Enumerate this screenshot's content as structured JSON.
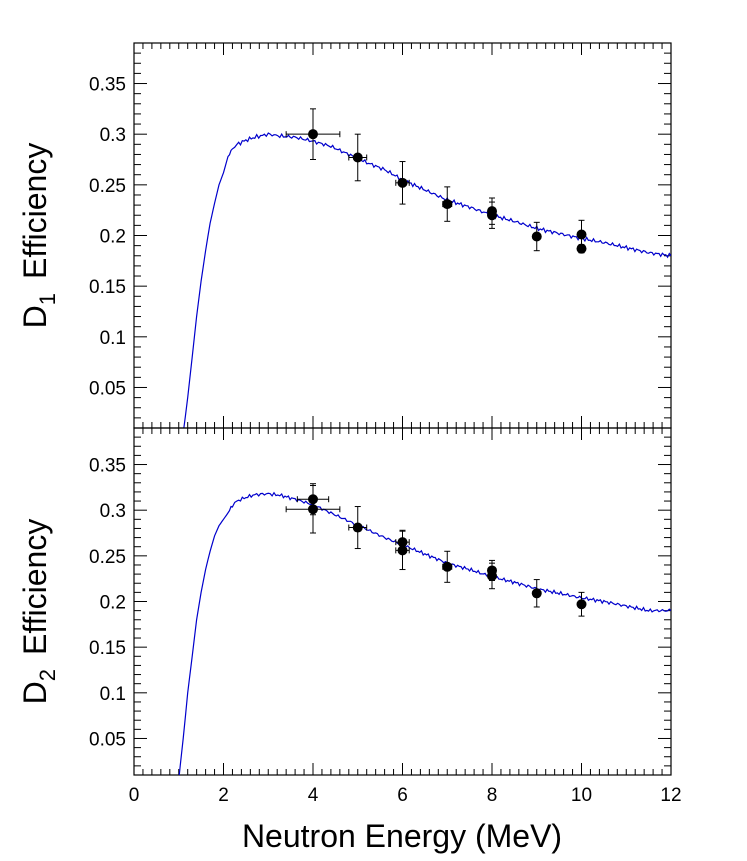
{
  "chart_data": [
    {
      "type": "scatter",
      "panel": "top",
      "ylabel_main": "D",
      "ylabel_sub": "1",
      "ylabel_rest": "Efficiency",
      "xlim": [
        0,
        12
      ],
      "ylim": [
        0.01,
        0.39
      ],
      "yticks": [
        0.05,
        0.1,
        0.15,
        0.2,
        0.25,
        0.3,
        0.35
      ],
      "ytick_labels": [
        "0.05",
        "0.1",
        "0.15",
        "0.2",
        "0.25",
        "0.3",
        "0.35"
      ],
      "grid": false,
      "simulation": {
        "color": "#0000cc",
        "x": [
          1.1,
          1.2,
          1.3,
          1.4,
          1.5,
          1.6,
          1.7,
          1.8,
          1.9,
          2.0,
          2.1,
          2.2,
          2.3,
          2.5,
          2.7,
          3.0,
          3.3,
          3.6,
          4.0,
          4.4,
          4.8,
          5.2,
          5.6,
          6.0,
          6.5,
          7.0,
          7.5,
          8.0,
          8.5,
          9.0,
          9.5,
          10.0,
          10.5,
          11.0,
          11.5,
          12.0
        ],
        "y": [
          0.005,
          0.04,
          0.08,
          0.12,
          0.155,
          0.185,
          0.212,
          0.232,
          0.25,
          0.262,
          0.278,
          0.285,
          0.29,
          0.294,
          0.297,
          0.3,
          0.298,
          0.297,
          0.293,
          0.288,
          0.28,
          0.272,
          0.265,
          0.255,
          0.245,
          0.235,
          0.228,
          0.22,
          0.214,
          0.207,
          0.202,
          0.197,
          0.193,
          0.188,
          0.183,
          0.18
        ]
      },
      "points": [
        {
          "x": 4,
          "y": 0.3,
          "yerr": 0.025,
          "xerr": 0.6
        },
        {
          "x": 5,
          "y": 0.277,
          "yerr": 0.023,
          "xerr": 0.2
        },
        {
          "x": 6,
          "y": 0.252,
          "yerr": 0.021,
          "xerr": 0.15
        },
        {
          "x": 7,
          "y": 0.231,
          "yerr": 0.017,
          "xerr": 0.1
        },
        {
          "x": 8,
          "y": 0.224,
          "yerr": 0.013,
          "xerr": 0.05
        },
        {
          "x": 8,
          "y": 0.22,
          "yerr": 0.013,
          "xerr": 0.05
        },
        {
          "x": 9,
          "y": 0.199,
          "yerr": 0.014,
          "xerr": 0.05
        },
        {
          "x": 10,
          "y": 0.201,
          "yerr": 0.014,
          "xerr": 0.05
        },
        {
          "x": 10,
          "y": 0.187,
          "yerr": 0.004,
          "xerr": 0.05
        }
      ]
    },
    {
      "type": "scatter",
      "panel": "bottom",
      "ylabel_main": "D",
      "ylabel_sub": "2",
      "ylabel_rest": "Efficiency",
      "xlabel": "Neutron Energy (MeV)",
      "xlim": [
        0,
        12
      ],
      "ylim": [
        0.01,
        0.39
      ],
      "xticks": [
        0,
        2,
        4,
        6,
        8,
        10,
        12
      ],
      "xtick_labels": [
        "0",
        "2",
        "4",
        "6",
        "8",
        "10",
        "12"
      ],
      "yticks": [
        0.05,
        0.1,
        0.15,
        0.2,
        0.25,
        0.3,
        0.35
      ],
      "ytick_labels": [
        "0.05",
        "0.1",
        "0.15",
        "0.2",
        "0.25",
        "0.3",
        "0.35"
      ],
      "grid": false,
      "simulation": {
        "color": "#0000cc",
        "x": [
          1.0,
          1.1,
          1.2,
          1.3,
          1.4,
          1.5,
          1.6,
          1.7,
          1.8,
          1.9,
          2.0,
          2.1,
          2.2,
          2.3,
          2.5,
          2.7,
          3.0,
          3.3,
          3.6,
          4.0,
          4.4,
          4.8,
          5.2,
          5.6,
          6.0,
          6.5,
          7.0,
          7.5,
          8.0,
          8.5,
          9.0,
          9.5,
          10.0,
          10.5,
          11.0,
          11.5,
          12.0
        ],
        "y": [
          0.005,
          0.05,
          0.1,
          0.14,
          0.18,
          0.21,
          0.235,
          0.255,
          0.272,
          0.283,
          0.29,
          0.297,
          0.305,
          0.31,
          0.314,
          0.317,
          0.318,
          0.316,
          0.312,
          0.306,
          0.297,
          0.288,
          0.279,
          0.27,
          0.262,
          0.252,
          0.242,
          0.235,
          0.227,
          0.221,
          0.214,
          0.209,
          0.204,
          0.2,
          0.195,
          0.19,
          0.19
        ]
      },
      "points": [
        {
          "x": 4,
          "y": 0.312,
          "yerr": 0.017,
          "xerr": 0.35
        },
        {
          "x": 4,
          "y": 0.301,
          "yerr": 0.026,
          "xerr": 0.6
        },
        {
          "x": 5,
          "y": 0.281,
          "yerr": 0.023,
          "xerr": 0.2
        },
        {
          "x": 6,
          "y": 0.265,
          "yerr": 0.013,
          "xerr": 0.15
        },
        {
          "x": 6,
          "y": 0.256,
          "yerr": 0.021,
          "xerr": 0.15
        },
        {
          "x": 7,
          "y": 0.238,
          "yerr": 0.017,
          "xerr": 0.1
        },
        {
          "x": 8,
          "y": 0.234,
          "yerr": 0.011,
          "xerr": 0.05
        },
        {
          "x": 8,
          "y": 0.228,
          "yerr": 0.014,
          "xerr": 0.05
        },
        {
          "x": 9,
          "y": 0.209,
          "yerr": 0.015,
          "xerr": 0.05
        },
        {
          "x": 10,
          "y": 0.197,
          "yerr": 0.013,
          "xerr": 0.05
        }
      ]
    }
  ]
}
